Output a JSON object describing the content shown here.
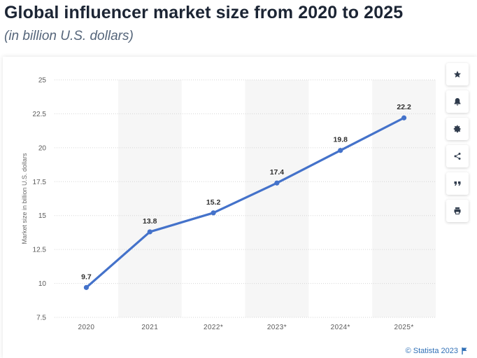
{
  "title": "Global influencer market size from 2020 to 2025",
  "subtitle": "(in billion U.S. dollars)",
  "credit": "© Statista 2023",
  "toolbar": [
    {
      "name": "star-icon"
    },
    {
      "name": "bell-icon"
    },
    {
      "name": "gear-icon"
    },
    {
      "name": "share-icon"
    },
    {
      "name": "quote-icon"
    },
    {
      "name": "print-icon"
    }
  ],
  "colors": {
    "line": "#4472ca",
    "band": "#f6f6f6",
    "grid": "#d6d6d6",
    "tick_text": "#5a5a5a",
    "label_text": "#2f2f2f"
  },
  "chart_data": {
    "type": "line",
    "categories": [
      "2020",
      "2021",
      "2022*",
      "2023*",
      "2024*",
      "2025*"
    ],
    "series": [
      {
        "values": [
          9.7,
          13.8,
          15.2,
          17.4,
          19.8,
          22.2
        ]
      }
    ],
    "data_labels": [
      "9.7",
      "13.8",
      "15.2",
      "17.4",
      "19.8",
      "22.2"
    ],
    "ylabel": "Market size in billion U.S. dollars",
    "xlabel": "",
    "ylim": [
      7.5,
      25
    ],
    "yticks": [
      7.5,
      10,
      12.5,
      15,
      17.5,
      20,
      22.5,
      25
    ],
    "ytick_labels": [
      "7.5",
      "10",
      "12.5",
      "15",
      "17.5",
      "20",
      "22.5",
      "25"
    ],
    "grid": true,
    "alternating_bands": true
  }
}
